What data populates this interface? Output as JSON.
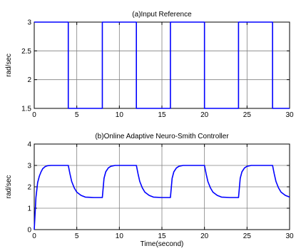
{
  "chart_data": [
    {
      "type": "line",
      "title": "(a)Input Reference",
      "xlabel": "",
      "ylabel": "rad/sec",
      "xlim": [
        0,
        30
      ],
      "ylim": [
        1.5,
        3
      ],
      "x_ticks": [
        "0",
        "5",
        "10",
        "15",
        "20",
        "25",
        "30"
      ],
      "y_ticks": [
        "1.5",
        "2",
        "2.5",
        "3"
      ],
      "grid": true,
      "series": [
        {
          "color": "#0000ff",
          "x": [
            0,
            4,
            4,
            8,
            8,
            12,
            12,
            16,
            16,
            20,
            20,
            24,
            24,
            28,
            28,
            30
          ],
          "y": [
            3,
            3,
            1.5,
            1.5,
            3,
            3,
            1.5,
            1.5,
            3,
            3,
            1.5,
            1.5,
            3,
            3,
            1.5,
            1.5
          ]
        }
      ]
    },
    {
      "type": "line",
      "title": "(b)Online Adaptive Neuro-Smith Controller",
      "xlabel": "Time(second)",
      "ylabel": "rad/sec",
      "xlim": [
        0,
        30
      ],
      "ylim": [
        0,
        4
      ],
      "x_ticks": [
        "0",
        "5",
        "10",
        "15",
        "20",
        "25",
        "30"
      ],
      "y_ticks": [
        "0",
        "1",
        "2",
        "3",
        "4"
      ],
      "grid": true,
      "series": [
        {
          "color": "#0000ff",
          "x": [
            0,
            0.2,
            0.4,
            0.6,
            0.8,
            1.0,
            1.3,
            1.6,
            2.0,
            2.5,
            3,
            3.5,
            4.0,
            4.2,
            4.4,
            4.7,
            5.0,
            5.5,
            6.0,
            7.0,
            8.0,
            8.2,
            8.4,
            8.7,
            9.0,
            9.5,
            10,
            11,
            12.0,
            12.2,
            12.4,
            12.7,
            13.0,
            13.5,
            14,
            15,
            16.0,
            16.2,
            16.4,
            16.7,
            17.0,
            17.5,
            18,
            19,
            20.0,
            20.2,
            20.4,
            20.7,
            21.0,
            21.5,
            22,
            23,
            24.0,
            24.2,
            24.4,
            24.7,
            25.0,
            25.5,
            26,
            27,
            28.0,
            28.2,
            28.4,
            28.7,
            29.0,
            29.5,
            30
          ],
          "y": [
            0,
            1.5,
            2.2,
            2.5,
            2.7,
            2.85,
            2.95,
            2.99,
            3,
            3,
            3,
            3,
            3,
            2.6,
            2.25,
            1.95,
            1.75,
            1.6,
            1.52,
            1.5,
            1.5,
            2.4,
            2.7,
            2.88,
            2.96,
            3,
            3,
            3,
            3,
            2.6,
            2.25,
            1.95,
            1.75,
            1.6,
            1.52,
            1.5,
            1.5,
            2.4,
            2.7,
            2.88,
            2.96,
            3,
            3,
            3,
            3,
            2.6,
            2.25,
            1.95,
            1.75,
            1.6,
            1.52,
            1.5,
            1.5,
            2.4,
            2.7,
            2.88,
            2.96,
            3,
            3,
            3,
            3,
            2.6,
            2.25,
            1.95,
            1.75,
            1.6,
            1.52
          ]
        }
      ]
    }
  ]
}
